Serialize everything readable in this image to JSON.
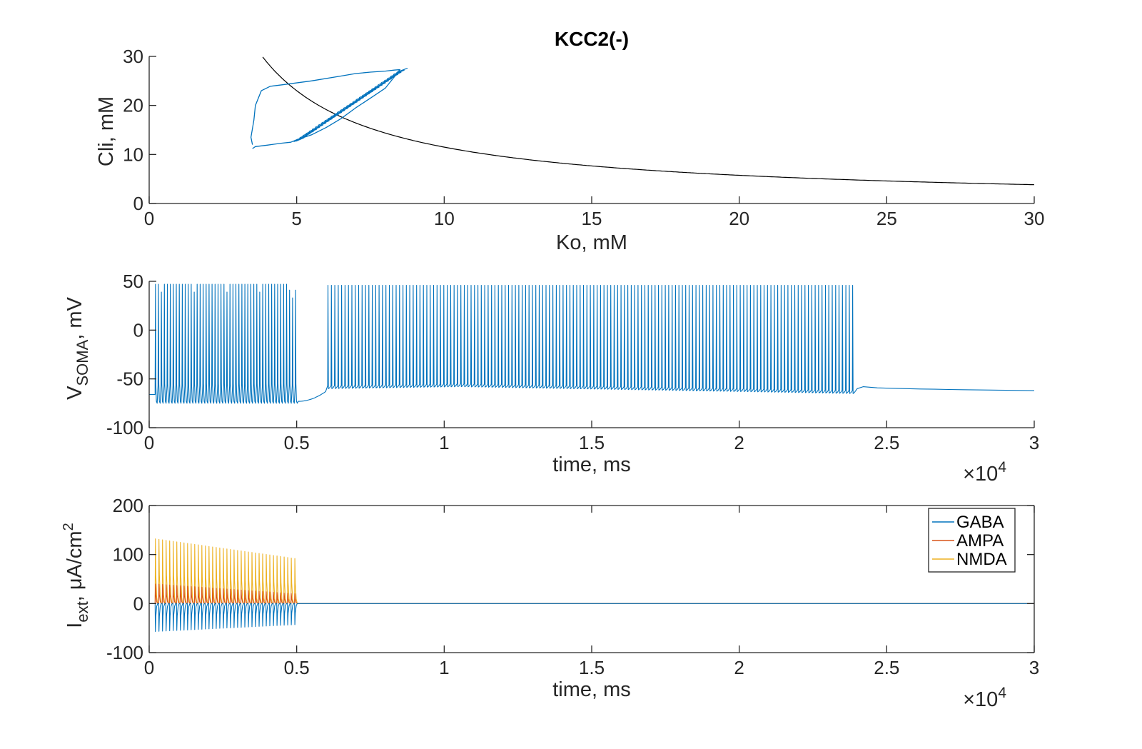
{
  "title": "KCC2(-)",
  "colors": {
    "gaba": "#0072BD",
    "ampa": "#D95319",
    "nmda": "#EDB120",
    "curve": "#000000",
    "axis": "#262626"
  },
  "chart_data": [
    {
      "type": "line",
      "xlabel": "Ko, mM",
      "ylabel": "Cli, mM",
      "xlim": [
        0,
        30
      ],
      "ylim": [
        0,
        30
      ],
      "xticks": [
        0,
        5,
        10,
        15,
        20,
        25,
        30
      ],
      "yticks": [
        0,
        10,
        20,
        30
      ],
      "x_tick_labels": [
        "0",
        "5",
        "10",
        "15",
        "20",
        "25",
        "30"
      ],
      "y_tick_labels": [
        "0",
        "10",
        "20",
        "30"
      ],
      "series": [
        {
          "role": "reference-curve",
          "color": "#000000",
          "k_over_x": 115,
          "x_range": [
            3.85,
            30
          ]
        },
        {
          "role": "trajectory",
          "color": "#0072BD",
          "x": [
            3.5,
            3.45,
            3.55,
            3.6,
            3.8,
            4.1,
            4.5,
            5.5,
            6.5,
            7.0,
            7.5,
            8.0,
            8.3,
            8.5,
            8.4,
            8.0,
            7.5,
            7.0,
            6.5,
            6.0,
            5.5,
            5.0,
            4.8,
            4.5,
            4.0,
            3.6,
            3.5
          ],
          "y": [
            12.0,
            13.5,
            17.0,
            20.0,
            23.0,
            23.9,
            24.2,
            25.0,
            26.0,
            26.5,
            26.8,
            27.0,
            27.2,
            27.3,
            26.5,
            23.5,
            21.5,
            19.5,
            17.3,
            15.5,
            14.0,
            13.0,
            12.5,
            12.3,
            11.9,
            11.6,
            11.2
          ]
        }
      ]
    },
    {
      "type": "line",
      "xlabel": "time, ms",
      "ylabel": "V",
      "ylabel_subscript": "SOMA",
      "ylabel_suffix": ", mV",
      "x_exponent": "×10",
      "x_exponent_power": "4",
      "xlim": [
        0,
        3
      ],
      "ylim": [
        -100,
        50
      ],
      "xticks": [
        0,
        0.5,
        1,
        1.5,
        2,
        2.5,
        3
      ],
      "yticks": [
        -100,
        -50,
        0,
        50
      ],
      "x_tick_labels": [
        "0",
        "0.5",
        "1",
        "1.5",
        "2",
        "2.5",
        "3"
      ],
      "y_tick_labels": [
        "-100",
        "-50",
        "0",
        "50"
      ],
      "series": [
        {
          "name": "",
          "color": "#0072BD",
          "burst1": {
            "t_start": 0.02,
            "t_end": 0.505,
            "spikes": 48,
            "peak": 47,
            "trough": -75
          },
          "recovery": {
            "t_start": 0.505,
            "t_end": 0.598,
            "v_start": -73,
            "v_end": -63
          },
          "burst2": {
            "t_start": 0.605,
            "t_end": 2.395,
            "spikes": 155,
            "peak": 46,
            "trough_start": -60,
            "trough_mid": -58,
            "trough_end": -65
          },
          "rest": {
            "t_start": 2.4,
            "t_end": 3.0,
            "v_start": -58,
            "v_end": -62
          }
        }
      ]
    },
    {
      "type": "line",
      "xlabel": "time, ms",
      "ylabel": "I",
      "ylabel_subscript": "ext",
      "ylabel_suffix": ", μA/cm",
      "ylabel_superscript": "2",
      "x_exponent": "×10",
      "x_exponent_power": "4",
      "xlim": [
        0,
        3
      ],
      "ylim": [
        -100,
        200
      ],
      "xticks": [
        0,
        0.5,
        1,
        1.5,
        2,
        2.5,
        3
      ],
      "yticks": [
        -100,
        0,
        100,
        200
      ],
      "x_tick_labels": [
        "0",
        "0.5",
        "1",
        "1.5",
        "2",
        "2.5",
        "3"
      ],
      "y_tick_labels": [
        "-100",
        "0",
        "100",
        "200"
      ],
      "legend": "top-right",
      "series": [
        {
          "name": "GABA",
          "color": "#0072BD",
          "pulse_start": 0.02,
          "pulse_end": 0.505,
          "pulses": 40,
          "peak_start": -57,
          "peak_end": -43
        },
        {
          "name": "AMPA",
          "color": "#D95319",
          "pulse_start": 0.02,
          "pulse_end": 0.505,
          "pulses": 40,
          "peak_start": 40,
          "peak_end": 20
        },
        {
          "name": "NMDA",
          "color": "#EDB120",
          "pulse_start": 0.02,
          "pulse_end": 0.505,
          "pulses": 40,
          "peak_start": 132,
          "peak_end": 92
        }
      ]
    }
  ]
}
